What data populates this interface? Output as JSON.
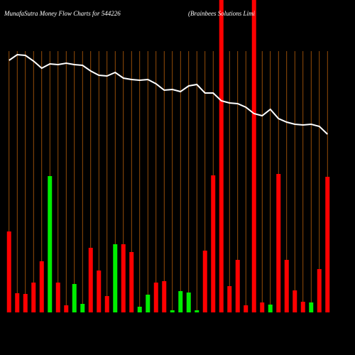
{
  "chart_data": {
    "type": "bar",
    "title": "MunafaSutra  Money Flow  Charts for 544226",
    "subtitle": "(Brainbees Solutions Limi",
    "categories": [
      null,
      null,
      null,
      null,
      null,
      null,
      null,
      null,
      null,
      null,
      null,
      null,
      null,
      null,
      null,
      null,
      null,
      null,
      null,
      null,
      null,
      null,
      null,
      null,
      null,
      null,
      null,
      null,
      null,
      null,
      null,
      null,
      null,
      null,
      null,
      null,
      null,
      null,
      null,
      null
    ],
    "ylim": [
      0,
      440
    ],
    "grid_color": "#b8600a",
    "series": [
      {
        "name": "Money Flow",
        "colors": [
          "red",
          "red",
          "red",
          "red",
          "red",
          "#00ee00",
          "red",
          "red",
          "#00ee00",
          "#00ee00",
          "red",
          "red",
          "red",
          "#00ee00",
          "red",
          "red",
          "#00ee00",
          "#00ee00",
          "red",
          "red",
          "#00ee00",
          "#00ee00",
          "#00ee00",
          "#00ee00",
          "red",
          "red",
          "red",
          "red",
          "red",
          "red",
          "red",
          "red",
          "#00ee00",
          "red",
          "red",
          "red",
          "red",
          "#00ee00",
          "red",
          "red"
        ],
        "values": [
          114,
          27,
          26,
          42,
          72,
          192,
          42,
          10,
          40,
          12,
          91,
          59,
          23,
          96,
          96,
          85,
          8,
          25,
          42,
          44,
          3,
          30,
          28,
          3,
          87,
          193,
          460,
          37,
          74,
          10,
          460,
          14,
          11,
          195,
          74,
          31,
          15,
          14,
          61,
          191
        ]
      },
      {
        "name": "Price",
        "color": "#ffffff",
        "line": true,
        "values": [
          355,
          363,
          362,
          354,
          344,
          350,
          349,
          351,
          349,
          348,
          340,
          334,
          333,
          338,
          330,
          328,
          327,
          328,
          322,
          313,
          314,
          311,
          319,
          321,
          309,
          309,
          298,
          295,
          294,
          289,
          280,
          277,
          286,
          273,
          268,
          265,
          264,
          265,
          262,
          251
        ]
      }
    ]
  }
}
